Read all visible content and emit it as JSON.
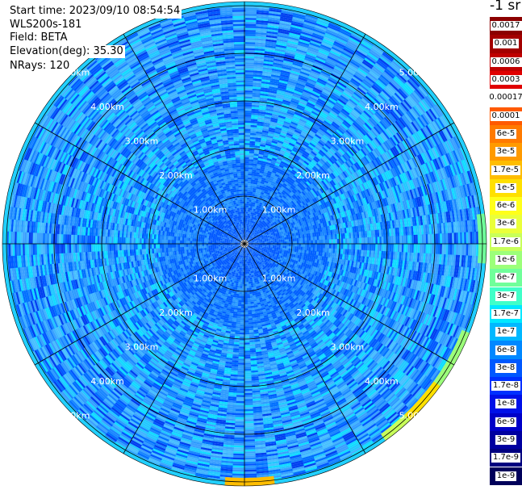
{
  "header": {
    "start_time": "Start time: 2023/09/10 08:54:54",
    "instrument": "WLS200s-181",
    "field": "Field: BETA",
    "elevation": "Elevation(deg): 35.30",
    "nrays": "NRays: 120"
  },
  "units": "-1 sr",
  "range_rings": {
    "labels": [
      "1.00km",
      "2.00km",
      "3.00km",
      "4.00km",
      "5.00km"
    ],
    "values_km": [
      1,
      2,
      3,
      4,
      5
    ]
  },
  "colorbar": {
    "colors": [
      "#8b0000",
      "#a30000",
      "#c00000",
      "#e00000",
      "#ffffff",
      "#ff5a00",
      "#ff7a00",
      "#ff9a00",
      "#ffbd00",
      "#ffe000",
      "#ffff1a",
      "#eaff3a",
      "#c8ff5a",
      "#9cff7a",
      "#70ff9a",
      "#40ffc8",
      "#00e8ff",
      "#00b8ff",
      "#0088ff",
      "#0058ff",
      "#0030ff",
      "#0010e8",
      "#0000c8",
      "#0000a0",
      "#000080",
      "#00005a"
    ],
    "labels": [
      "0.0017",
      "0.001",
      "0.0006",
      "0.0003",
      "0.00017",
      "0.0001",
      "6e-5",
      "3e-5",
      "1.7e-5",
      "1e-5",
      "6e-6",
      "3e-6",
      "1.7e-6",
      "1e-6",
      "6e-7",
      "3e-7",
      "1.7e-7",
      "1e-7",
      "6e-8",
      "3e-8",
      "1.7e-8",
      "1e-8",
      "6e-9",
      "3e-9",
      "1.7e-9",
      "1e-9"
    ]
  }
}
